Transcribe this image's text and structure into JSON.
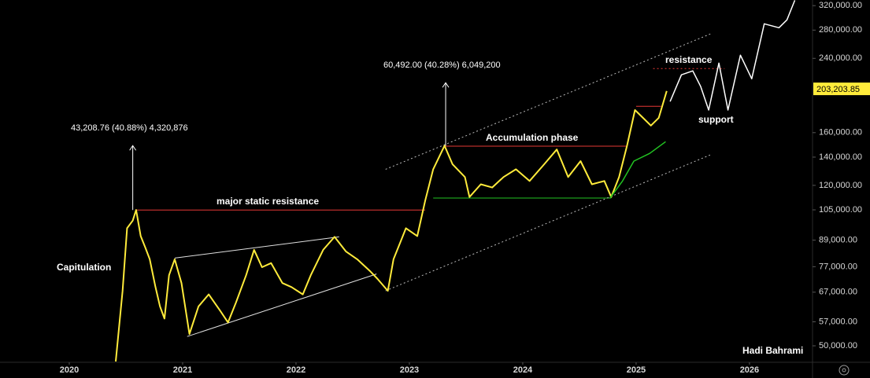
{
  "chart_data": {
    "type": "line",
    "log_scale": true,
    "xlim": [
      2019.389,
      2026.556
    ],
    "ylim": [
      45700,
      330000
    ],
    "xticks": [
      2020,
      2021,
      2022,
      2023,
      2024,
      2025,
      2026
    ],
    "yticks": [
      {
        "value": 50000,
        "label": "50,000.00"
      },
      {
        "value": 57000,
        "label": "57,000.00"
      },
      {
        "value": 67000,
        "label": "67,000.00"
      },
      {
        "value": 77000,
        "label": "77,000.00"
      },
      {
        "value": 89000,
        "label": "89,000.00"
      },
      {
        "value": 105000,
        "label": "105,000.00"
      },
      {
        "value": 120000,
        "label": "120,000.00"
      },
      {
        "value": 140000,
        "label": "140,000.00"
      },
      {
        "value": 160000,
        "label": "160,000.00"
      },
      {
        "value": 240000,
        "label": "240,000.00"
      },
      {
        "value": 280000,
        "label": "280,000.00"
      },
      {
        "value": 320000,
        "label": "320,000.00"
      }
    ],
    "last_price": {
      "value": 203203.85,
      "label": "203,203.85",
      "color": "#ffeb3b"
    },
    "series": [
      {
        "color": "#ffeb3b",
        "width": 2,
        "x": [
          2020.41,
          2020.43,
          2020.47,
          2020.51,
          2020.56,
          2020.59,
          2020.63,
          2020.67,
          2020.71,
          2020.76,
          2020.8,
          2020.84,
          2020.88,
          2020.93,
          2020.99,
          2021.06,
          2021.14,
          2021.23,
          2021.33,
          2021.4,
          2021.47,
          2021.56,
          2021.63,
          2021.7,
          2021.78,
          2021.88,
          2021.96,
          2022.06,
          2022.13,
          2022.24,
          2022.34,
          2022.44,
          2022.54,
          2022.65,
          2022.72,
          2022.81,
          2022.86,
          2022.97,
          2023.07,
          2023.14,
          2023.21,
          2023.31,
          2023.38,
          2023.49,
          2023.53,
          2023.63,
          2023.73,
          2023.83,
          2023.94,
          2024.06,
          2024.19,
          2024.3,
          2024.4,
          2024.51,
          2024.61,
          2024.72,
          2024.78,
          2024.85,
          2024.92,
          2024.99,
          2025.06,
          2025.13,
          2025.2,
          2025.27
        ],
        "values": [
          45900,
          52200,
          67500,
          95000,
          99000,
          104900,
          91000,
          85500,
          80200,
          69000,
          62000,
          58000,
          73500,
          80200,
          70400,
          53300,
          62000,
          66200,
          60600,
          56800,
          63300,
          73500,
          84400,
          76800,
          78500,
          70400,
          68900,
          66200,
          73500,
          84400,
          90600,
          83700,
          80200,
          75300,
          72000,
          67500,
          80200,
          95000,
          91000,
          110500,
          131000,
          149000,
          134700,
          125600,
          112600,
          120700,
          118600,
          125600,
          131000,
          122900,
          134700,
          146000,
          125600,
          137000,
          120700,
          122900,
          112600,
          125600,
          149000,
          181000,
          173500,
          166300,
          173500,
          200800
        ]
      },
      {
        "color": "#ffffff",
        "width": 1.5,
        "x": [
          2025.3,
          2025.4,
          2025.5,
          2025.57,
          2025.64,
          2025.73,
          2025.81,
          2025.92,
          2026.02,
          2026.13,
          2026.26,
          2026.33,
          2026.4
        ],
        "values": [
          189600,
          219400,
          224100,
          205700,
          181000,
          233900,
          181000,
          244200,
          214700,
          289800,
          283700,
          296100,
          329500
        ]
      },
      {
        "color": "#22c322",
        "width": 1.5,
        "x": [
          2024.77,
          2024.88,
          2024.98,
          2025.12,
          2025.26
        ],
        "values": [
          112000,
          122900,
          137000,
          142900,
          152300
        ]
      }
    ],
    "drawings": [
      {
        "color": "#e53935",
        "dash": false,
        "x": [
          2020.59,
          2023.14
        ],
        "values": [
          104900,
          104900
        ]
      },
      {
        "color": "#e53935",
        "dash": false,
        "x": [
          2023.31,
          2024.92
        ],
        "values": [
          148600,
          148600
        ]
      },
      {
        "color": "#22c322",
        "dash": false,
        "x": [
          2023.21,
          2024.78
        ],
        "values": [
          112000,
          112000
        ]
      },
      {
        "color": "#e53935",
        "dash": false,
        "x": [
          2025.0,
          2025.22
        ],
        "values": [
          184800,
          184800
        ]
      },
      {
        "color": "#e53935",
        "dash": true,
        "x": [
          2025.15,
          2025.78
        ],
        "values": [
          227000,
          227000
        ]
      },
      {
        "color": "#e0e0e0",
        "dash": false,
        "x": [
          2020.93,
          2022.38
        ],
        "values": [
          80700,
          90600
        ]
      },
      {
        "color": "#e0e0e0",
        "dash": false,
        "x": [
          2021.04,
          2022.71
        ],
        "values": [
          52600,
          74000
        ]
      },
      {
        "color": "#bbbbbb",
        "dash": true,
        "x": [
          2022.79,
          2025.67
        ],
        "values": [
          131000,
          275300
        ]
      },
      {
        "color": "#bbbbbb",
        "dash": true,
        "x": [
          2022.79,
          2025.67
        ],
        "values": [
          67500,
          142300
        ]
      },
      {
        "color": "#ffffff",
        "dash": false,
        "arrow": true,
        "x": [
          2020.56,
          2020.56
        ],
        "values": [
          104900,
          149100
        ]
      },
      {
        "color": "#ffffff",
        "dash": false,
        "arrow": true,
        "x": [
          2023.32,
          2023.32
        ],
        "values": [
          149000,
          210100
        ]
      }
    ],
    "annotations": [
      "43,208.76 (40.88%) 4,320,876",
      "60,492.00 (40.28%) 6,049,200",
      "major static resistance",
      "Accumulation phase",
      "Capitulation",
      "resistance",
      "support",
      "Hadi Bahrami"
    ]
  }
}
